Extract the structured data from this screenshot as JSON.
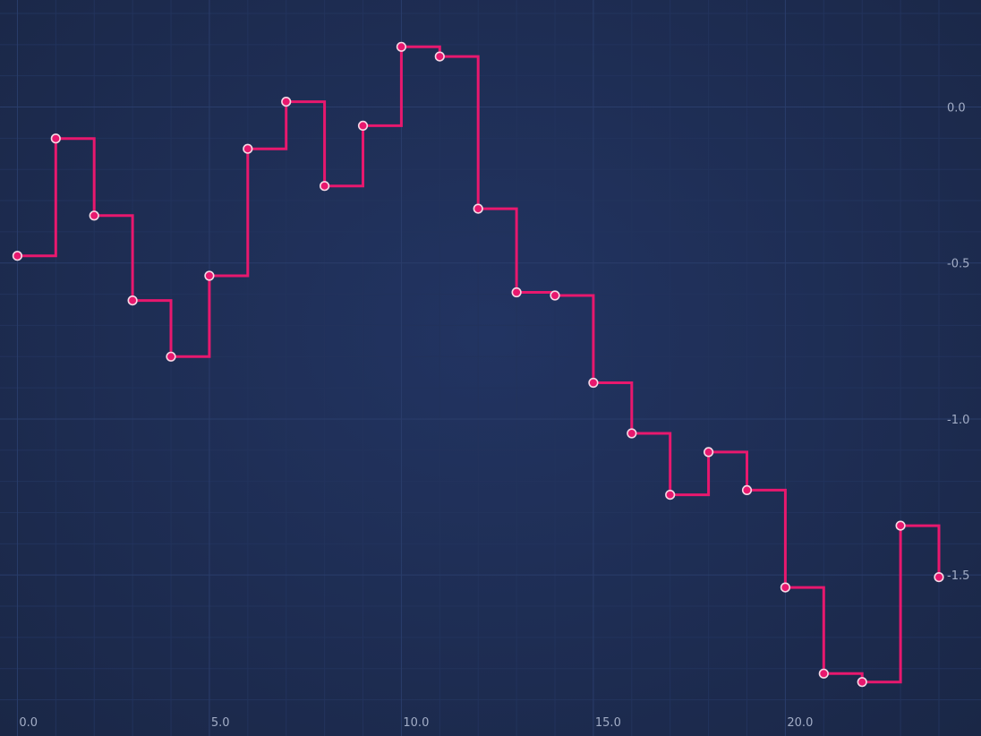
{
  "chart_data": {
    "type": "line",
    "interpolation": "step-after",
    "title": "",
    "xlabel": "",
    "ylabel": "",
    "x": [
      0,
      1,
      2,
      3,
      4,
      5,
      6,
      7,
      8,
      9,
      10,
      11,
      12,
      13,
      14,
      15,
      16,
      17,
      18,
      19,
      20,
      21,
      22,
      23,
      24
    ],
    "series": [
      {
        "values": [
          -0.477,
          -0.101,
          -0.348,
          -0.62,
          -0.8,
          -0.541,
          -0.134,
          0.017,
          -0.253,
          -0.06,
          0.193,
          0.162,
          -0.326,
          -0.594,
          -0.604,
          -0.884,
          -1.046,
          -1.243,
          -1.106,
          -1.228,
          -1.54,
          -1.816,
          -1.843,
          -1.342,
          -1.507
        ],
        "color": "#e8186e",
        "marker": "circle",
        "marker_fill": "#e8186e",
        "marker_stroke": "#f6d9e6"
      }
    ],
    "xlim": [
      -0.22,
      24.0
    ],
    "ylim": [
      -1.93,
      0.3
    ],
    "x_ticks": [
      0,
      5,
      10,
      15,
      20
    ],
    "x_tick_labels": [
      "0.0",
      "5.0",
      "10.0",
      "15.0",
      "20.0"
    ],
    "y_ticks": [
      0,
      -0.5,
      -1,
      -1.5
    ],
    "y_tick_labels": [
      "0.0",
      "-0.5",
      "-1.0",
      "-1.5"
    ],
    "y_axis_position": "right",
    "grid": true,
    "legend": "none",
    "background_colors": [
      "#1a2746",
      "#223462"
    ],
    "grid_major_color": "#2a3d6b",
    "grid_minor_color": "#22335c",
    "tick_label_color": "#a2adc6"
  }
}
